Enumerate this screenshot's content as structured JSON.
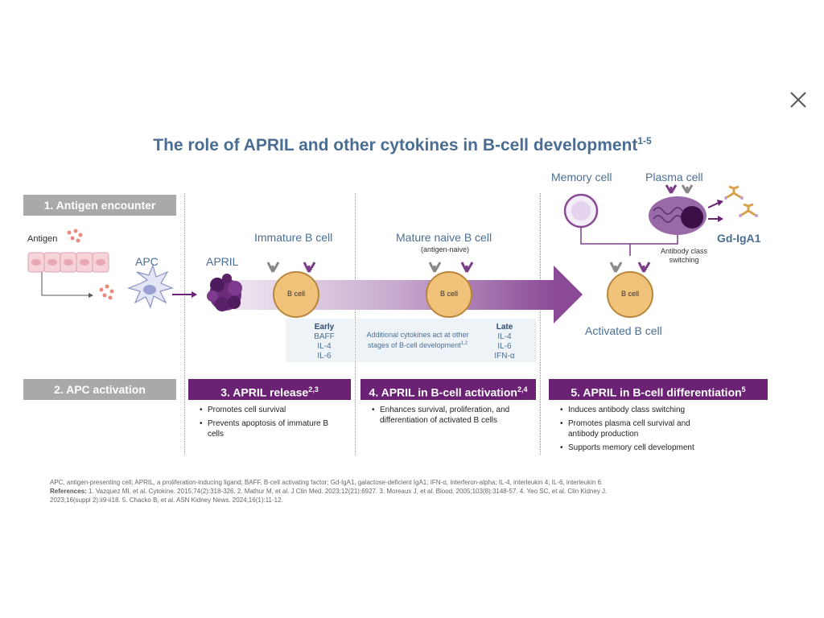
{
  "title": "The role of APRIL and other cytokines in B-cell development",
  "title_superscript": "1-5",
  "close_icon": "close-icon",
  "steps": {
    "s1": "1. Antigen encounter",
    "s2": "2. APC activation",
    "s3": "3. APRIL release",
    "s3_sup": "2,3",
    "s4": "4. APRIL in B-cell activation",
    "s4_sup": "2,4",
    "s5": "5. APRIL in B-cell differentiation",
    "s5_sup": "5"
  },
  "labels": {
    "antigen": "Antigen",
    "apc": "APC",
    "april": "APRIL",
    "immature": "Immature B cell",
    "mature": "Mature naive B cell",
    "mature_sub": "(antigen-naive)",
    "activated": "Activated B cell",
    "memory": "Memory cell",
    "plasma": "Plasma cell",
    "gdiga1": "Gd-IgA1",
    "class_switch_1": "Antibody class",
    "class_switch_2": "switching",
    "bcell": "B cell"
  },
  "cytokines": {
    "early_title": "Early",
    "early": [
      "BAFF",
      "IL-4",
      "IL-6"
    ],
    "additional_1": "Additional cytokines act at other",
    "additional_2": "stages of B-cell development",
    "additional_sup": "1,2",
    "late_title": "Late",
    "late": [
      "IL-4",
      "IL-6",
      "IFN-α"
    ]
  },
  "bullets": {
    "s3": [
      "Promotes cell survival",
      "Prevents apoptosis of immature B cells"
    ],
    "s4": [
      "Enhances survival, proliferation, and differentiation of activated B cells"
    ],
    "s5": [
      "Induces antibody class switching",
      "Promotes plasma cell survival and antibody production",
      "Supports memory cell development"
    ]
  },
  "footnotes": {
    "abbrev": "APC, antigen-presenting cell; APRIL, a proliferation-inducing ligand; BAFF, B-cell activating factor; Gd-IgA1, galactose-deficient IgA1; IFN-α, interferon-alpha; IL-4, interleukin 4; IL-6, interleukin 6.",
    "ref_label": "References:",
    "refs_line1": "1. Vazquez MI, et al. Cytokine. 2015;74(2):318-326. 2. Mathur M, et al. J Clin Med. 2023;12(21):6927. 3. Moreaux J, et al. Blood. 2005;103(8):3148-57. 4. Yeo SC, et al. Clin Kidney J.",
    "refs_line2": "2023;16(suppl 2):ii9-ii18. 5. Chacko B, et al. ASN Kidney News. 2024;16(1):11-12."
  },
  "colors": {
    "title_blue": "#4a6e93",
    "step_grey": "#a9a9ab",
    "step_purple": "#6b2275",
    "bcell_fill": "#f0c27a",
    "bcell_stroke": "#b8873c"
  }
}
